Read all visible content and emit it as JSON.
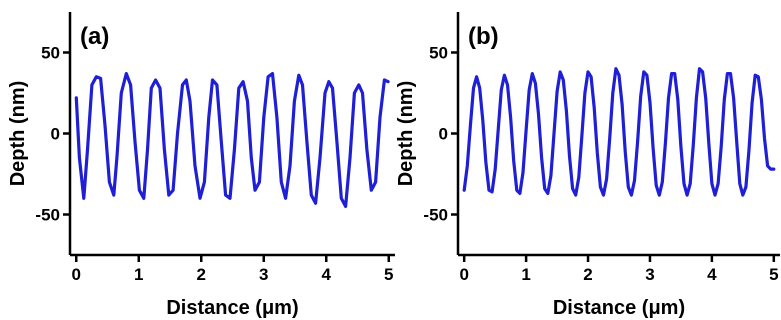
{
  "chart_data": [
    {
      "type": "line",
      "panel_label": "(a)",
      "xlabel": "Distance (μm)",
      "ylabel": "Depth (nm)",
      "xlim": [
        -0.1,
        5.1
      ],
      "ylim": [
        -75,
        75
      ],
      "xticks": [
        0,
        1,
        2,
        3,
        4,
        5
      ],
      "yticks": [
        -50,
        0,
        50
      ],
      "grid": false,
      "line_color": "#1f1fd6",
      "series": [
        {
          "x": [
            0.0,
            0.05,
            0.12,
            0.18,
            0.25,
            0.32,
            0.39,
            0.46,
            0.53,
            0.6,
            0.65,
            0.72,
            0.8,
            0.87,
            0.94,
            1.01,
            1.08,
            1.14,
            1.2,
            1.27,
            1.34,
            1.41,
            1.48,
            1.55,
            1.62,
            1.7,
            1.76,
            1.82,
            1.9,
            1.98,
            2.05,
            2.12,
            2.18,
            2.25,
            2.32,
            2.39,
            2.46,
            2.53,
            2.6,
            2.67,
            2.74,
            2.8,
            2.86,
            2.93,
            3.0,
            3.07,
            3.14,
            3.21,
            3.28,
            3.35,
            3.42,
            3.49,
            3.56,
            3.62,
            3.69,
            3.76,
            3.83,
            3.9,
            3.98,
            4.04,
            4.1,
            4.17,
            4.24,
            4.31,
            4.38,
            4.45,
            4.52,
            4.58,
            4.65,
            4.72,
            4.79,
            4.86,
            4.93,
            4.99
          ],
          "y": [
            22,
            -15,
            -40,
            -10,
            30,
            35,
            34,
            5,
            -30,
            -38,
            -15,
            25,
            37,
            30,
            -5,
            -35,
            -40,
            -10,
            28,
            33,
            28,
            -10,
            -38,
            -35,
            0,
            30,
            33,
            20,
            -20,
            -40,
            -30,
            10,
            33,
            30,
            -5,
            -38,
            -40,
            -10,
            28,
            32,
            20,
            -15,
            -35,
            -30,
            10,
            35,
            37,
            10,
            -30,
            -40,
            -20,
            20,
            36,
            30,
            -5,
            -38,
            -43,
            -15,
            25,
            32,
            28,
            -5,
            -40,
            -45,
            -15,
            25,
            30,
            25,
            -10,
            -35,
            -30,
            10,
            33,
            32
          ]
        }
      ]
    },
    {
      "type": "line",
      "panel_label": "(b)",
      "xlabel": "Distance (μm)",
      "ylabel": "Depth (nm)",
      "xlim": [
        -0.1,
        5.1
      ],
      "ylim": [
        -75,
        75
      ],
      "xticks": [
        0,
        1,
        2,
        3,
        4,
        5
      ],
      "yticks": [
        -50,
        0,
        50
      ],
      "grid": false,
      "line_color": "#1f1fd6",
      "series": [
        {
          "x": [
            0.0,
            0.05,
            0.1,
            0.15,
            0.2,
            0.25,
            0.3,
            0.35,
            0.4,
            0.45,
            0.5,
            0.55,
            0.6,
            0.65,
            0.7,
            0.75,
            0.8,
            0.85,
            0.9,
            0.95,
            1.0,
            1.05,
            1.1,
            1.15,
            1.2,
            1.25,
            1.3,
            1.35,
            1.4,
            1.45,
            1.5,
            1.55,
            1.6,
            1.65,
            1.7,
            1.75,
            1.8,
            1.85,
            1.9,
            1.95,
            2.0,
            2.05,
            2.1,
            2.15,
            2.2,
            2.25,
            2.3,
            2.35,
            2.4,
            2.45,
            2.5,
            2.55,
            2.6,
            2.65,
            2.7,
            2.75,
            2.8,
            2.85,
            2.9,
            2.95,
            3.0,
            3.05,
            3.1,
            3.15,
            3.2,
            3.25,
            3.3,
            3.35,
            3.4,
            3.45,
            3.5,
            3.55,
            3.6,
            3.65,
            3.7,
            3.75,
            3.8,
            3.85,
            3.9,
            3.95,
            4.0,
            4.05,
            4.1,
            4.15,
            4.2,
            4.25,
            4.3,
            4.35,
            4.4,
            4.45,
            4.5,
            4.55,
            4.6,
            4.65,
            4.7,
            4.75,
            4.8,
            4.85,
            4.9,
            4.95,
            5.0
          ],
          "y": [
            -35,
            -20,
            5,
            28,
            35,
            28,
            8,
            -18,
            -35,
            -36,
            -22,
            3,
            27,
            36,
            30,
            10,
            -17,
            -35,
            -37,
            -24,
            2,
            27,
            37,
            31,
            12,
            -15,
            -34,
            -37,
            -26,
            0,
            26,
            38,
            33,
            14,
            -14,
            -34,
            -38,
            -27,
            -2,
            25,
            38,
            35,
            16,
            -12,
            -33,
            -38,
            -28,
            -3,
            25,
            40,
            36,
            18,
            -11,
            -33,
            -38,
            -29,
            -5,
            23,
            38,
            36,
            19,
            -9,
            -32,
            -38,
            -30,
            -6,
            22,
            37,
            37,
            21,
            -8,
            -31,
            -38,
            -31,
            -7,
            22,
            40,
            38,
            22,
            -6,
            -31,
            -38,
            -31,
            -8,
            21,
            37,
            37,
            22,
            -5,
            -31,
            -38,
            -33,
            -10,
            19,
            36,
            35,
            21,
            -3,
            -20,
            -22,
            -22
          ]
        }
      ]
    }
  ]
}
